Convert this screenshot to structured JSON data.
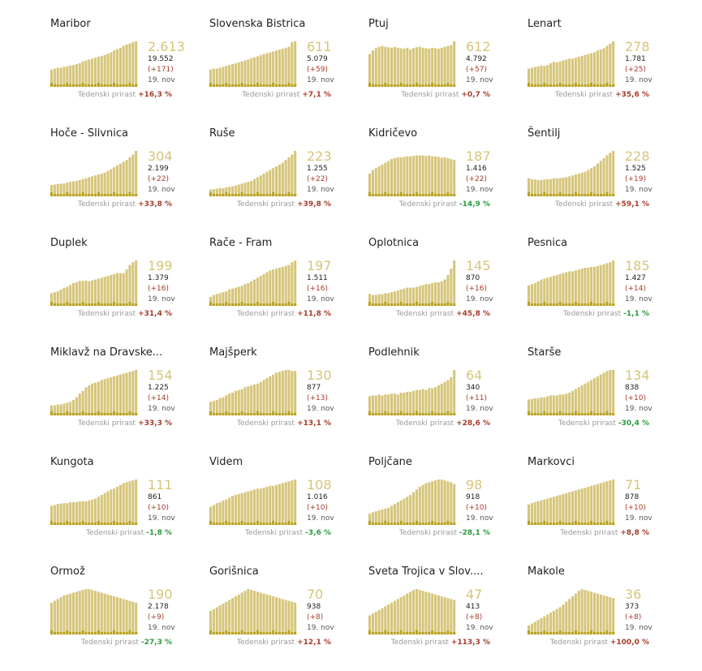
{
  "labels": {
    "date": "19. nov",
    "growth_label": "Tedenski prirast"
  },
  "colors": {
    "bar_total": "#d6c57a",
    "bar_new": "#b8a11a",
    "positive": "#a63c2c",
    "negative": "#2e9a3e"
  },
  "chart_data": [
    {
      "type": "bar",
      "title": "Maribor",
      "latest": "2.613",
      "total": "19.552",
      "delta": "(+171)",
      "growth": "+16,3 %",
      "trend": "pos",
      "values": [
        38,
        40,
        42,
        42,
        44,
        45,
        47,
        48,
        50,
        52,
        56,
        58,
        60,
        62,
        64,
        66,
        68,
        70,
        73,
        76,
        80,
        83,
        86,
        90,
        93,
        95,
        98,
        100
      ]
    },
    {
      "type": "bar",
      "title": "Slovenska Bistrica",
      "latest": "611",
      "total": "5.079",
      "delta": "(+59)",
      "growth": "+7,1 %",
      "trend": "pos",
      "values": [
        38,
        40,
        40,
        42,
        44,
        46,
        48,
        50,
        52,
        54,
        56,
        58,
        60,
        63,
        65,
        67,
        70,
        72,
        74,
        76,
        78,
        80,
        82,
        84,
        86,
        88,
        98,
        100
      ]
    },
    {
      "type": "bar",
      "title": "Ptuj",
      "latest": "612",
      "total": "4.792",
      "delta": "(+57)",
      "growth": "+0,7 %",
      "trend": "pos",
      "values": [
        72,
        80,
        85,
        88,
        90,
        88,
        87,
        86,
        88,
        86,
        85,
        84,
        86,
        82,
        85,
        87,
        88,
        86,
        85,
        84,
        86,
        85,
        84,
        86,
        88,
        90,
        92,
        100
      ]
    },
    {
      "type": "bar",
      "title": "Lenart",
      "latest": "278",
      "total": "1.781",
      "delta": "(+25)",
      "growth": "+35,6 %",
      "trend": "pos",
      "values": [
        40,
        42,
        44,
        45,
        47,
        46,
        48,
        52,
        55,
        54,
        56,
        58,
        60,
        62,
        62,
        64,
        66,
        68,
        70,
        72,
        74,
        76,
        80,
        82,
        85,
        90,
        95,
        100
      ]
    },
    {
      "type": "bar",
      "title": "Hoče - Slivnica",
      "latest": "304",
      "total": "2.199",
      "delta": "(+22)",
      "growth": "+33,8 %",
      "trend": "pos",
      "values": [
        25,
        26,
        27,
        28,
        28,
        30,
        32,
        33,
        34,
        36,
        38,
        40,
        42,
        44,
        46,
        48,
        50,
        52,
        56,
        60,
        64,
        68,
        72,
        76,
        80,
        86,
        92,
        100
      ]
    },
    {
      "type": "bar",
      "title": "Ruše",
      "latest": "223",
      "total": "1.255",
      "delta": "(+22)",
      "growth": "+39,8 %",
      "trend": "pos",
      "values": [
        15,
        16,
        17,
        18,
        18,
        20,
        21,
        22,
        24,
        26,
        28,
        30,
        32,
        34,
        38,
        42,
        46,
        50,
        54,
        58,
        62,
        66,
        70,
        74,
        80,
        86,
        92,
        100
      ]
    },
    {
      "type": "bar",
      "title": "Kidričevo",
      "latest": "187",
      "total": "1.416",
      "delta": "(+22)",
      "growth": "-14,9 %",
      "trend": "neg",
      "values": [
        50,
        58,
        62,
        66,
        70,
        74,
        78,
        82,
        84,
        86,
        86,
        87,
        88,
        88,
        89,
        90,
        90,
        90,
        89,
        90,
        88,
        88,
        87,
        85,
        86,
        84,
        82,
        80
      ]
    },
    {
      "type": "bar",
      "title": "Šentilj",
      "latest": "228",
      "total": "1.525",
      "delta": "(+19)",
      "growth": "+59,1 %",
      "trend": "pos",
      "values": [
        40,
        38,
        37,
        36,
        36,
        37,
        38,
        38,
        40,
        40,
        40,
        41,
        42,
        44,
        46,
        48,
        50,
        52,
        54,
        58,
        62,
        66,
        72,
        78,
        84,
        90,
        96,
        100
      ]
    },
    {
      "type": "bar",
      "title": "Duplek",
      "latest": "199",
      "total": "1.379",
      "delta": "(+16)",
      "growth": "+31,4 %",
      "trend": "pos",
      "values": [
        28,
        30,
        32,
        36,
        40,
        42,
        46,
        50,
        52,
        55,
        55,
        56,
        54,
        56,
        58,
        60,
        62,
        64,
        66,
        68,
        70,
        72,
        72,
        72,
        80,
        90,
        96,
        100
      ]
    },
    {
      "type": "bar",
      "title": "Rače - Fram",
      "latest": "197",
      "total": "1.511",
      "delta": "(+16)",
      "growth": "+11,8 %",
      "trend": "pos",
      "values": [
        20,
        24,
        26,
        28,
        30,
        32,
        36,
        38,
        40,
        42,
        44,
        48,
        50,
        54,
        58,
        62,
        66,
        70,
        74,
        78,
        80,
        82,
        84,
        86,
        88,
        90,
        96,
        100
      ]
    },
    {
      "type": "bar",
      "title": "Oplotnica",
      "latest": "145",
      "total": "870",
      "delta": "(+16)",
      "growth": "+45,8 %",
      "trend": "pos",
      "values": [
        26,
        24,
        24,
        26,
        26,
        28,
        28,
        30,
        32,
        34,
        36,
        38,
        40,
        40,
        40,
        42,
        44,
        46,
        48,
        48,
        50,
        52,
        52,
        54,
        58,
        68,
        82,
        100
      ]
    },
    {
      "type": "bar",
      "title": "Pesnica",
      "latest": "185",
      "total": "1.427",
      "delta": "(+14)",
      "growth": "-1,1 %",
      "trend": "neg",
      "values": [
        45,
        48,
        50,
        54,
        58,
        60,
        62,
        64,
        66,
        68,
        70,
        72,
        74,
        76,
        76,
        78,
        80,
        82,
        84,
        84,
        86,
        86,
        88,
        90,
        92,
        94,
        96,
        100
      ]
    },
    {
      "type": "bar",
      "title": "Miklavž na Dravske...",
      "latest": "154",
      "total": "1.225",
      "delta": "(+14)",
      "growth": "+33,3 %",
      "trend": "pos",
      "values": [
        22,
        22,
        24,
        24,
        26,
        28,
        30,
        34,
        40,
        48,
        54,
        62,
        66,
        70,
        72,
        74,
        78,
        80,
        82,
        84,
        86,
        88,
        90,
        92,
        94,
        96,
        98,
        100
      ]
    },
    {
      "type": "bar",
      "title": "Majšperk",
      "latest": "130",
      "total": "877",
      "delta": "(+13)",
      "growth": "+13,1 %",
      "trend": "pos",
      "values": [
        30,
        32,
        34,
        38,
        40,
        44,
        48,
        50,
        54,
        56,
        58,
        62,
        64,
        66,
        68,
        70,
        74,
        78,
        82,
        86,
        90,
        94,
        96,
        98,
        100,
        100,
        98,
        98
      ]
    },
    {
      "type": "bar",
      "title": "Podlehnik",
      "latest": "64",
      "total": "340",
      "delta": "(+11)",
      "growth": "+28,6 %",
      "trend": "pos",
      "values": [
        42,
        44,
        44,
        46,
        44,
        46,
        46,
        48,
        48,
        46,
        50,
        50,
        52,
        52,
        54,
        56,
        56,
        58,
        56,
        60,
        60,
        62,
        66,
        70,
        74,
        78,
        84,
        100
      ]
    },
    {
      "type": "bar",
      "title": "Starše",
      "latest": "134",
      "total": "838",
      "delta": "(+10)",
      "growth": "-30,4 %",
      "trend": "neg",
      "values": [
        35,
        36,
        38,
        38,
        40,
        40,
        42,
        44,
        44,
        44,
        46,
        46,
        48,
        50,
        54,
        58,
        62,
        66,
        70,
        74,
        78,
        82,
        86,
        90,
        94,
        98,
        100,
        100
      ]
    },
    {
      "type": "bar",
      "title": "Kungota",
      "latest": "111",
      "total": "861",
      "delta": "(+10)",
      "growth": "-1,8 %",
      "trend": "neg",
      "values": [
        42,
        44,
        46,
        47,
        48,
        48,
        50,
        50,
        50,
        52,
        52,
        52,
        54,
        56,
        58,
        62,
        66,
        70,
        74,
        78,
        80,
        84,
        88,
        92,
        94,
        96,
        98,
        100
      ]
    },
    {
      "type": "bar",
      "title": "Videm",
      "latest": "108",
      "total": "1.016",
      "delta": "(+10)",
      "growth": "-3,6 %",
      "trend": "neg",
      "values": [
        40,
        44,
        48,
        50,
        54,
        56,
        60,
        64,
        66,
        68,
        70,
        72,
        74,
        76,
        78,
        80,
        80,
        82,
        84,
        86,
        86,
        88,
        90,
        92,
        94,
        96,
        98,
        100
      ]
    },
    {
      "type": "bar",
      "title": "Poljčane",
      "latest": "98",
      "total": "918",
      "delta": "(+10)",
      "growth": "-28,1 %",
      "trend": "neg",
      "values": [
        25,
        28,
        30,
        32,
        34,
        36,
        38,
        42,
        46,
        50,
        54,
        58,
        62,
        66,
        72,
        78,
        84,
        88,
        92,
        94,
        96,
        98,
        100,
        100,
        98,
        96,
        94,
        90
      ]
    },
    {
      "type": "bar",
      "title": "Markovci",
      "latest": "71",
      "total": "878",
      "delta": "(+10)",
      "growth": "+8,8 %",
      "trend": "pos",
      "values": [
        45,
        48,
        50,
        52,
        54,
        56,
        58,
        60,
        62,
        64,
        66,
        68,
        70,
        72,
        74,
        76,
        78,
        80,
        82,
        84,
        86,
        88,
        90,
        92,
        94,
        96,
        98,
        100
      ]
    },
    {
      "type": "bar",
      "title": "Ormož",
      "latest": "190",
      "total": "2.178",
      "delta": "(+9)",
      "growth": "-27,3 %",
      "trend": "neg",
      "values": [
        70,
        74,
        78,
        82,
        86,
        88,
        90,
        92,
        94,
        96,
        98,
        100,
        100,
        98,
        96,
        94,
        92,
        90,
        88,
        86,
        84,
        82,
        80,
        78,
        76,
        74,
        72,
        70
      ]
    },
    {
      "type": "bar",
      "title": "Gorišnica",
      "latest": "70",
      "total": "938",
      "delta": "(+8)",
      "growth": "+12,1 %",
      "trend": "pos",
      "values": [
        52,
        56,
        60,
        64,
        68,
        72,
        76,
        80,
        84,
        88,
        92,
        96,
        100,
        98,
        96,
        94,
        92,
        90,
        88,
        86,
        84,
        82,
        80,
        78,
        76,
        74,
        72,
        70
      ]
    },
    {
      "type": "bar",
      "title": "Sveta Trojica v Slov....",
      "latest": "47",
      "total": "413",
      "delta": "(+8)",
      "growth": "+113,3 %",
      "trend": "pos",
      "values": [
        42,
        46,
        50,
        54,
        58,
        62,
        66,
        70,
        74,
        78,
        82,
        86,
        90,
        94,
        98,
        100,
        98,
        96,
        94,
        92,
        90,
        88,
        86,
        84,
        82,
        80,
        78,
        76
      ]
    },
    {
      "type": "bar",
      "title": "Makole",
      "latest": "36",
      "total": "373",
      "delta": "(+8)",
      "growth": "+100,0 %",
      "trend": "pos",
      "values": [
        20,
        24,
        28,
        32,
        36,
        40,
        44,
        48,
        52,
        56,
        60,
        66,
        72,
        78,
        84,
        90,
        96,
        100,
        98,
        96,
        94,
        92,
        90,
        88,
        86,
        84,
        82,
        80
      ]
    }
  ]
}
